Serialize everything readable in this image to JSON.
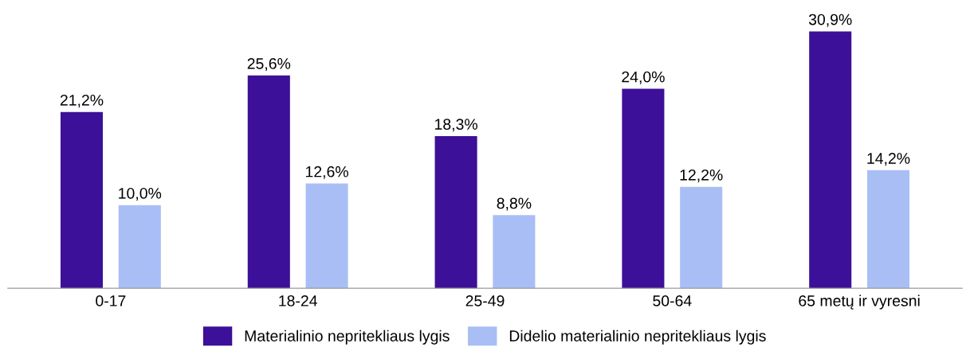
{
  "chart_data": {
    "type": "bar",
    "categories": [
      "0-17",
      "18-24",
      "25-49",
      "50-64",
      "65 metų ir vyresni"
    ],
    "series": [
      {
        "name": "Materialinio nepritekliaus lygis",
        "color": "#3c1098",
        "values": [
          21.2,
          25.6,
          18.3,
          24.0,
          30.9
        ],
        "value_labels": [
          "21,2%",
          "25,6%",
          "18,3%",
          "24,0%",
          "30,9%"
        ]
      },
      {
        "name": "Didelio materialinio nepritekliaus lygis",
        "color": "#a9bef5",
        "values": [
          10.0,
          12.6,
          8.8,
          12.2,
          14.2
        ],
        "value_labels": [
          "10,0%",
          "12,6%",
          "8,8%",
          "12,2%",
          "14,2%"
        ]
      }
    ],
    "grid": false,
    "legend": "bottom",
    "tick_labels": "x"
  }
}
